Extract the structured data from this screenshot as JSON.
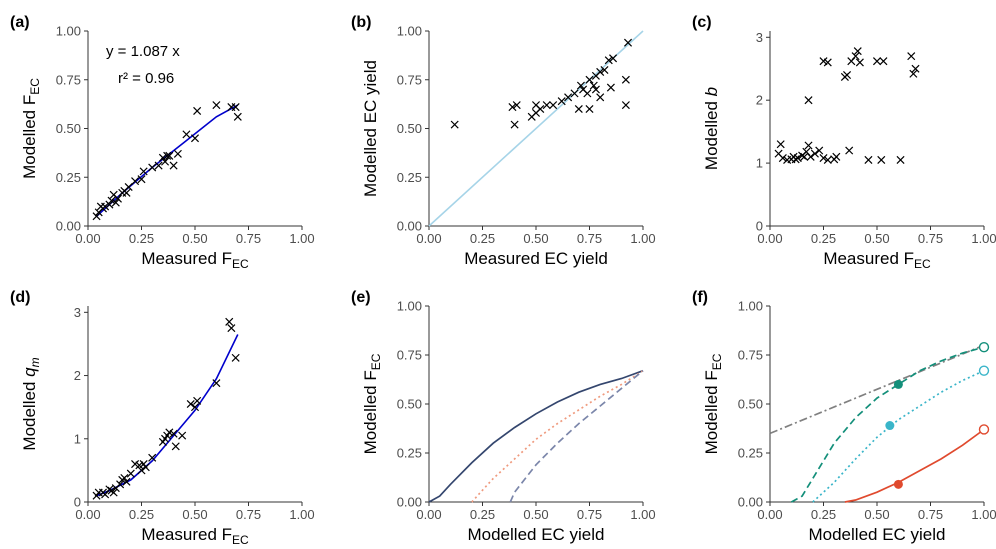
{
  "colors": {
    "axis": "#333333",
    "marker": "#000000",
    "fit": "#0000cc",
    "one_to_one": "#a6d4e8",
    "navy": "#34466e",
    "salmon": "#ef9a7e",
    "slate": "#7b86aa",
    "teal_dark": "#138f7a",
    "teal_light": "#3ab5c9",
    "red": "#e04a2e",
    "gray_dash": "#808080"
  },
  "chart_data": [
    {
      "panel": "(a)",
      "type": "scatter",
      "xlabel": "Measured F",
      "xlabel_sub": "EC",
      "ylabel": "Modelled F",
      "ylabel_sub": "EC",
      "xlim": [
        0,
        1
      ],
      "ylim": [
        0,
        1
      ],
      "xticks": [
        "0.00",
        "0.25",
        "0.50",
        "0.75",
        "1.00"
      ],
      "yticks": [
        "0.00",
        "0.25",
        "0.50",
        "0.75",
        "1.00"
      ],
      "annotations": [
        "y = 1.087 x",
        "r² = 0.96"
      ],
      "points": [
        [
          0.04,
          0.05
        ],
        [
          0.05,
          0.07
        ],
        [
          0.06,
          0.1
        ],
        [
          0.07,
          0.09
        ],
        [
          0.08,
          0.1
        ],
        [
          0.1,
          0.11
        ],
        [
          0.11,
          0.13
        ],
        [
          0.12,
          0.16
        ],
        [
          0.13,
          0.12
        ],
        [
          0.14,
          0.14
        ],
        [
          0.16,
          0.17
        ],
        [
          0.17,
          0.18
        ],
        [
          0.18,
          0.17
        ],
        [
          0.19,
          0.2
        ],
        [
          0.22,
          0.23
        ],
        [
          0.25,
          0.24
        ],
        [
          0.26,
          0.28
        ],
        [
          0.3,
          0.3
        ],
        [
          0.33,
          0.31
        ],
        [
          0.35,
          0.35
        ],
        [
          0.36,
          0.33
        ],
        [
          0.37,
          0.36
        ],
        [
          0.38,
          0.36
        ],
        [
          0.4,
          0.31
        ],
        [
          0.42,
          0.37
        ],
        [
          0.46,
          0.47
        ],
        [
          0.5,
          0.45
        ],
        [
          0.51,
          0.59
        ],
        [
          0.6,
          0.62
        ],
        [
          0.67,
          0.61
        ],
        [
          0.69,
          0.61
        ],
        [
          0.7,
          0.56
        ]
      ],
      "fit_line": [
        [
          0.04,
          0.05
        ],
        [
          0.15,
          0.16
        ],
        [
          0.3,
          0.3
        ],
        [
          0.45,
          0.43
        ],
        [
          0.6,
          0.56
        ],
        [
          0.7,
          0.62
        ]
      ]
    },
    {
      "panel": "(b)",
      "type": "scatter",
      "xlabel": "Measured EC yield",
      "ylabel": "Modelled EC yield",
      "xlim": [
        0,
        1
      ],
      "ylim": [
        0,
        1
      ],
      "xticks": [
        "0.00",
        "0.25",
        "0.50",
        "0.75",
        "1.00"
      ],
      "yticks": [
        "0.00",
        "0.25",
        "0.50",
        "0.75",
        "1.00"
      ],
      "reference_line": [
        [
          0,
          0
        ],
        [
          1,
          1
        ]
      ],
      "points": [
        [
          0.12,
          0.52
        ],
        [
          0.39,
          0.61
        ],
        [
          0.4,
          0.52
        ],
        [
          0.41,
          0.62
        ],
        [
          0.48,
          0.56
        ],
        [
          0.5,
          0.58
        ],
        [
          0.5,
          0.62
        ],
        [
          0.52,
          0.6
        ],
        [
          0.55,
          0.62
        ],
        [
          0.58,
          0.62
        ],
        [
          0.62,
          0.64
        ],
        [
          0.65,
          0.66
        ],
        [
          0.68,
          0.68
        ],
        [
          0.7,
          0.6
        ],
        [
          0.71,
          0.72
        ],
        [
          0.72,
          0.7
        ],
        [
          0.74,
          0.68
        ],
        [
          0.75,
          0.75
        ],
        [
          0.75,
          0.6
        ],
        [
          0.77,
          0.72
        ],
        [
          0.78,
          0.7
        ],
        [
          0.78,
          0.77
        ],
        [
          0.8,
          0.79
        ],
        [
          0.8,
          0.66
        ],
        [
          0.82,
          0.8
        ],
        [
          0.84,
          0.85
        ],
        [
          0.85,
          0.71
        ],
        [
          0.86,
          0.86
        ],
        [
          0.92,
          0.75
        ],
        [
          0.92,
          0.62
        ],
        [
          0.93,
          0.94
        ]
      ]
    },
    {
      "panel": "(c)",
      "type": "scatter",
      "xlabel": "Measured F",
      "xlabel_sub": "EC",
      "ylabel": "Modelled ",
      "ylabel_italic": "b",
      "xlim": [
        0,
        1
      ],
      "ylim": [
        0,
        3.1
      ],
      "xticks": [
        "0.00",
        "0.25",
        "0.50",
        "0.75",
        "1.00"
      ],
      "yticks": [
        "0",
        "1",
        "2",
        "3"
      ],
      "points": [
        [
          0.04,
          1.15
        ],
        [
          0.05,
          1.3
        ],
        [
          0.06,
          1.08
        ],
        [
          0.08,
          1.05
        ],
        [
          0.1,
          1.06
        ],
        [
          0.11,
          1.1
        ],
        [
          0.12,
          1.06
        ],
        [
          0.13,
          1.08
        ],
        [
          0.15,
          1.12
        ],
        [
          0.16,
          1.1
        ],
        [
          0.17,
          1.18
        ],
        [
          0.18,
          1.28
        ],
        [
          0.19,
          1.1
        ],
        [
          0.21,
          1.15
        ],
        [
          0.23,
          1.2
        ],
        [
          0.25,
          1.08
        ],
        [
          0.27,
          1.05
        ],
        [
          0.3,
          1.06
        ],
        [
          0.31,
          1.1
        ],
        [
          0.25,
          2.62
        ],
        [
          0.27,
          2.6
        ],
        [
          0.18,
          2.0
        ],
        [
          0.35,
          2.37
        ],
        [
          0.36,
          2.4
        ],
        [
          0.37,
          1.2
        ],
        [
          0.38,
          2.62
        ],
        [
          0.4,
          2.7
        ],
        [
          0.41,
          2.78
        ],
        [
          0.42,
          2.6
        ],
        [
          0.46,
          1.05
        ],
        [
          0.5,
          2.62
        ],
        [
          0.52,
          1.05
        ],
        [
          0.53,
          2.62
        ],
        [
          0.61,
          1.05
        ],
        [
          0.66,
          2.7
        ],
        [
          0.67,
          2.42
        ],
        [
          0.68,
          2.5
        ]
      ]
    },
    {
      "panel": "(d)",
      "type": "scatter",
      "xlabel": "Measured F",
      "xlabel_sub": "EC",
      "ylabel": "Modelled ",
      "ylabel_italic": "q",
      "ylabel_italic_sub": "m",
      "xlim": [
        0,
        1
      ],
      "ylim": [
        0,
        3.1
      ],
      "xticks": [
        "0.00",
        "0.25",
        "0.50",
        "0.75",
        "1.00"
      ],
      "yticks": [
        "0",
        "1",
        "2",
        "3"
      ],
      "points": [
        [
          0.04,
          0.1
        ],
        [
          0.05,
          0.15
        ],
        [
          0.07,
          0.15
        ],
        [
          0.08,
          0.12
        ],
        [
          0.1,
          0.2
        ],
        [
          0.11,
          0.18
        ],
        [
          0.12,
          0.15
        ],
        [
          0.13,
          0.22
        ],
        [
          0.15,
          0.28
        ],
        [
          0.16,
          0.35
        ],
        [
          0.17,
          0.38
        ],
        [
          0.18,
          0.32
        ],
        [
          0.2,
          0.45
        ],
        [
          0.22,
          0.6
        ],
        [
          0.24,
          0.58
        ],
        [
          0.25,
          0.5
        ],
        [
          0.26,
          0.6
        ],
        [
          0.27,
          0.55
        ],
        [
          0.3,
          0.7
        ],
        [
          0.35,
          0.95
        ],
        [
          0.36,
          1.0
        ],
        [
          0.37,
          1.05
        ],
        [
          0.38,
          1.1
        ],
        [
          0.4,
          1.08
        ],
        [
          0.41,
          0.88
        ],
        [
          0.44,
          1.05
        ],
        [
          0.48,
          1.55
        ],
        [
          0.5,
          1.5
        ],
        [
          0.51,
          1.6
        ],
        [
          0.6,
          1.88
        ],
        [
          0.66,
          2.85
        ],
        [
          0.67,
          2.75
        ],
        [
          0.69,
          2.28
        ]
      ],
      "fit_line": [
        [
          0.04,
          0.1
        ],
        [
          0.1,
          0.18
        ],
        [
          0.2,
          0.35
        ],
        [
          0.3,
          0.65
        ],
        [
          0.4,
          1.05
        ],
        [
          0.5,
          1.45
        ],
        [
          0.6,
          1.95
        ],
        [
          0.7,
          2.65
        ]
      ]
    },
    {
      "panel": "(e)",
      "type": "line",
      "xlabel": "Modelled EC yield",
      "ylabel": "Modelled F",
      "ylabel_sub": "EC",
      "xlim": [
        0,
        1
      ],
      "ylim": [
        0,
        1
      ],
      "xticks": [
        "0.00",
        "0.25",
        "0.50",
        "0.75",
        "1.00"
      ],
      "yticks": [
        "0.00",
        "0.25",
        "0.50",
        "0.75",
        "1.00"
      ],
      "series": [
        {
          "x": [
            0,
            0.05,
            0.1,
            0.2,
            0.3,
            0.4,
            0.5,
            0.6,
            0.7,
            0.8,
            0.9,
            1.0
          ],
          "y": [
            0,
            0.03,
            0.09,
            0.2,
            0.3,
            0.38,
            0.45,
            0.51,
            0.56,
            0.6,
            0.63,
            0.67
          ],
          "color": "navy",
          "dash": "solid"
        },
        {
          "x": [
            0.2,
            0.25,
            0.3,
            0.4,
            0.5,
            0.6,
            0.7,
            0.8,
            0.9,
            1.0
          ],
          "y": [
            0,
            0.06,
            0.12,
            0.22,
            0.32,
            0.4,
            0.47,
            0.54,
            0.6,
            0.67
          ],
          "color": "salmon",
          "dash": "dot"
        },
        {
          "x": [
            0.38,
            0.4,
            0.45,
            0.5,
            0.6,
            0.7,
            0.8,
            0.9,
            1.0
          ],
          "y": [
            0,
            0.05,
            0.12,
            0.19,
            0.3,
            0.4,
            0.49,
            0.58,
            0.67
          ],
          "color": "slate",
          "dash": "dash"
        }
      ]
    },
    {
      "panel": "(f)",
      "type": "line",
      "xlabel": "Modelled EC yield",
      "ylabel": "Modelled F",
      "ylabel_sub": "EC",
      "xlim": [
        0,
        1
      ],
      "ylim": [
        0,
        1
      ],
      "xticks": [
        "0.00",
        "0.25",
        "0.50",
        "0.75",
        "1.00"
      ],
      "yticks": [
        "0.00",
        "0.25",
        "0.50",
        "0.75",
        "1.00"
      ],
      "series": [
        {
          "x": [
            0,
            1
          ],
          "y": [
            0.35,
            0.8
          ],
          "color": "gray_dash",
          "dash": "dashdot"
        },
        {
          "x": [
            0.1,
            0.15,
            0.2,
            0.3,
            0.4,
            0.5,
            0.6,
            0.7,
            0.8,
            0.9,
            1.0
          ],
          "y": [
            0,
            0.03,
            0.12,
            0.3,
            0.43,
            0.53,
            0.6,
            0.67,
            0.72,
            0.76,
            0.79
          ],
          "color": "teal_dark",
          "dash": "dash"
        },
        {
          "x": [
            0.2,
            0.25,
            0.3,
            0.4,
            0.5,
            0.6,
            0.7,
            0.8,
            0.9,
            1.0
          ],
          "y": [
            0,
            0.05,
            0.1,
            0.22,
            0.33,
            0.42,
            0.49,
            0.56,
            0.62,
            0.67
          ],
          "color": "teal_light",
          "dash": "dot"
        },
        {
          "x": [
            0.35,
            0.4,
            0.5,
            0.6,
            0.7,
            0.8,
            0.9,
            1.0
          ],
          "y": [
            0,
            0.01,
            0.05,
            0.1,
            0.16,
            0.22,
            0.29,
            0.37
          ],
          "color": "red",
          "dash": "solid"
        }
      ],
      "filled_points": [
        {
          "x": 0.6,
          "y": 0.6,
          "color": "teal_dark"
        },
        {
          "x": 0.56,
          "y": 0.39,
          "color": "teal_light"
        },
        {
          "x": 0.6,
          "y": 0.09,
          "color": "red"
        }
      ],
      "open_points": [
        {
          "x": 1.0,
          "y": 0.79,
          "color": "teal_dark"
        },
        {
          "x": 1.0,
          "y": 0.67,
          "color": "teal_light"
        },
        {
          "x": 1.0,
          "y": 0.37,
          "color": "red"
        }
      ]
    }
  ]
}
